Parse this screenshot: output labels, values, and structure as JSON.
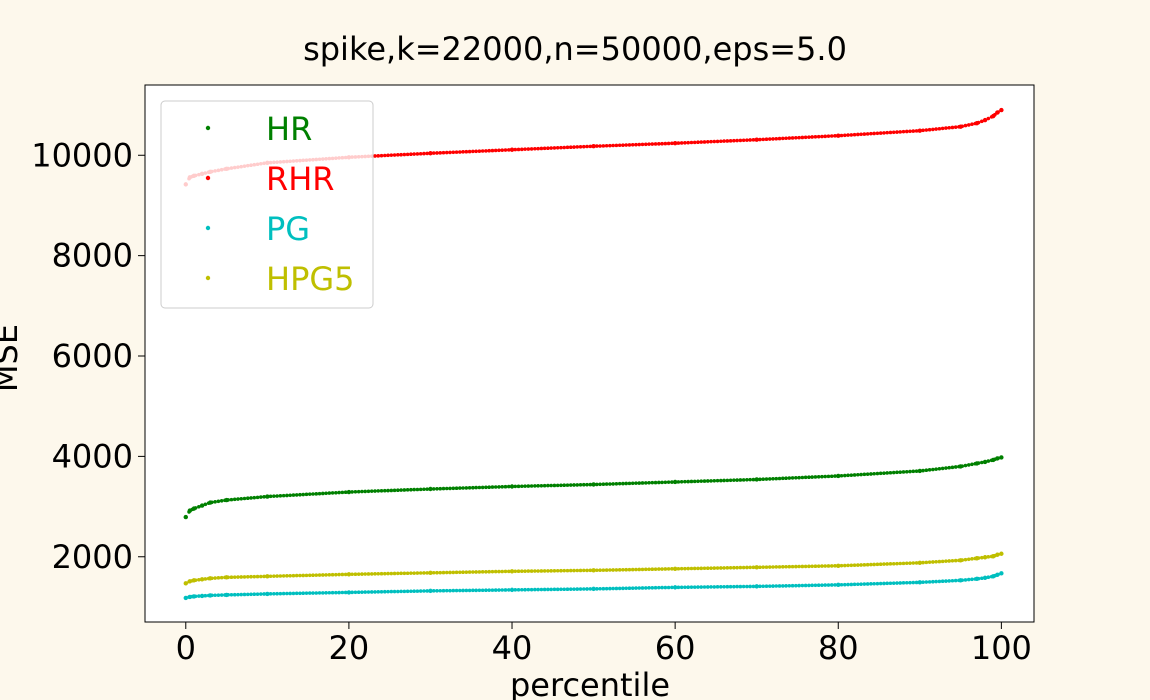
{
  "chart_data": {
    "type": "scatter",
    "title": "spike,k=22000,n=50000,eps=5.0",
    "xlabel": "percentile",
    "ylabel": "MSE",
    "xlim": [
      -5,
      104
    ],
    "ylim": [
      700,
      11400
    ],
    "xticks": [
      0,
      20,
      40,
      60,
      80,
      100
    ],
    "yticks": [
      2000,
      4000,
      6000,
      8000,
      10000
    ],
    "legend_position": "upper-left",
    "grid": false,
    "series": [
      {
        "name": "HR",
        "color": "#008000",
        "x": [
          0,
          0.5,
          1,
          2,
          3,
          5,
          10,
          20,
          30,
          40,
          50,
          60,
          70,
          80,
          90,
          95,
          97,
          98,
          99,
          99.5,
          100
        ],
        "y": [
          2790,
          2920,
          2960,
          3020,
          3080,
          3130,
          3200,
          3290,
          3350,
          3400,
          3440,
          3490,
          3540,
          3610,
          3710,
          3800,
          3860,
          3890,
          3930,
          3960,
          3980
        ]
      },
      {
        "name": "RHR",
        "color": "#ff0000",
        "x": [
          0,
          0.5,
          1,
          2,
          3,
          5,
          10,
          20,
          30,
          40,
          50,
          60,
          70,
          80,
          90,
          95,
          97,
          98,
          99,
          99.5,
          100
        ],
        "y": [
          9420,
          9560,
          9590,
          9630,
          9670,
          9730,
          9850,
          9960,
          10040,
          10110,
          10180,
          10240,
          10310,
          10390,
          10490,
          10570,
          10640,
          10700,
          10780,
          10850,
          10900
        ]
      },
      {
        "name": "PG",
        "color": "#00bfbf",
        "x": [
          0,
          0.5,
          1,
          2,
          3,
          5,
          10,
          20,
          30,
          40,
          50,
          60,
          70,
          80,
          90,
          95,
          97,
          98,
          99,
          99.5,
          100
        ],
        "y": [
          1180,
          1200,
          1210,
          1220,
          1230,
          1240,
          1260,
          1290,
          1320,
          1340,
          1360,
          1390,
          1410,
          1440,
          1490,
          1530,
          1560,
          1580,
          1610,
          1640,
          1670
        ]
      },
      {
        "name": "HPG5",
        "color": "#bfbf00",
        "x": [
          0,
          0.5,
          1,
          2,
          3,
          5,
          10,
          20,
          30,
          40,
          50,
          60,
          70,
          80,
          90,
          95,
          97,
          98,
          99,
          99.5,
          100
        ],
        "y": [
          1470,
          1510,
          1530,
          1550,
          1570,
          1590,
          1610,
          1650,
          1680,
          1710,
          1730,
          1760,
          1790,
          1820,
          1880,
          1930,
          1970,
          1990,
          2010,
          2040,
          2060
        ]
      }
    ]
  }
}
